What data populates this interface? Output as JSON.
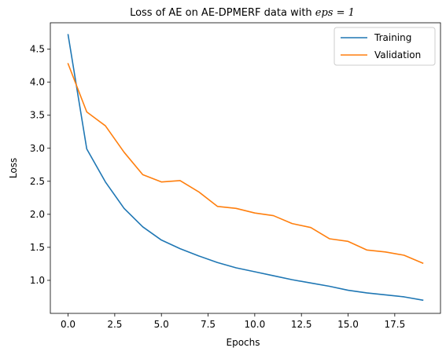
{
  "chart_data": {
    "type": "line",
    "title": "Loss of AE on AE-DPMERF data with ",
    "title_math": "eps = 1",
    "xlabel": "Epochs",
    "ylabel": "Loss",
    "xlim": [
      -0.95,
      19.95
    ],
    "ylim": [
      0.5,
      4.9
    ],
    "xticks": [
      0.0,
      2.5,
      5.0,
      7.5,
      10.0,
      12.5,
      15.0,
      17.5
    ],
    "xtick_labels": [
      "0.0",
      "2.5",
      "5.0",
      "7.5",
      "10.0",
      "12.5",
      "15.0",
      "17.5"
    ],
    "yticks": [
      1.0,
      1.5,
      2.0,
      2.5,
      3.0,
      3.5,
      4.0,
      4.5
    ],
    "ytick_labels": [
      "1.0",
      "1.5",
      "2.0",
      "2.5",
      "3.0",
      "3.5",
      "4.0",
      "4.5"
    ],
    "grid": false,
    "legend_position": "top-right",
    "x": [
      0,
      1,
      2,
      3,
      4,
      5,
      6,
      7,
      8,
      9,
      10,
      11,
      12,
      13,
      14,
      15,
      16,
      17,
      18,
      19
    ],
    "series": [
      {
        "name": "Training",
        "color": "#1f77b4",
        "values": [
          4.72,
          2.99,
          2.49,
          2.09,
          1.81,
          1.61,
          1.48,
          1.37,
          1.27,
          1.19,
          1.13,
          1.07,
          1.01,
          0.96,
          0.91,
          0.85,
          0.81,
          0.78,
          0.75,
          0.7
        ]
      },
      {
        "name": "Validation",
        "color": "#ff7f0e",
        "values": [
          4.28,
          3.55,
          3.34,
          2.94,
          2.6,
          2.49,
          2.51,
          2.34,
          2.12,
          2.09,
          2.02,
          1.98,
          1.86,
          1.8,
          1.63,
          1.59,
          1.46,
          1.43,
          1.38,
          1.26
        ]
      }
    ]
  }
}
